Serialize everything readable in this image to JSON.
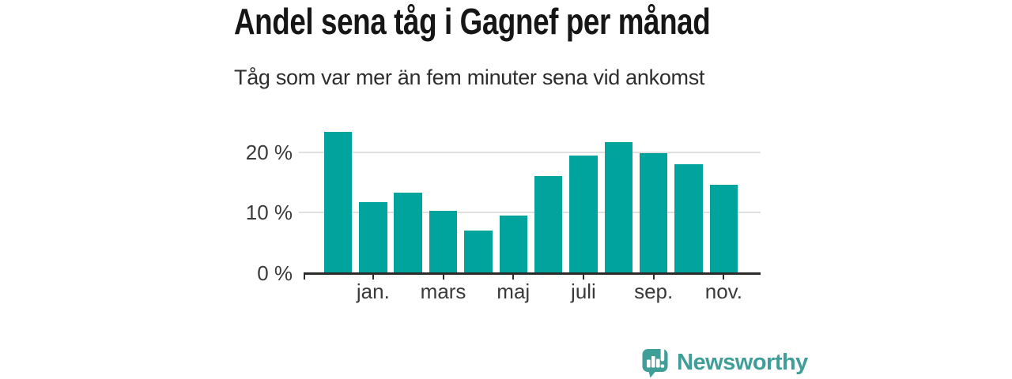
{
  "title": "Andel sena tåg i Gagnef per månad",
  "subtitle": "Tåg som var mer än fem minuter sena vid ankomst",
  "footer": {
    "brand": "Newsworthy",
    "logo_icon": "newsworthy-speech-bubble-bar-chart-icon"
  },
  "colors": {
    "bar": "#00a49c",
    "brand": "#3f9e98",
    "grid": "#e0e0e0",
    "axis": "#2b2b2b",
    "title_text": "#161616",
    "label_text": "#3a3a3a"
  },
  "chart_data": {
    "type": "bar",
    "values": [
      23.3,
      11.8,
      13.3,
      10.3,
      7.0,
      9.5,
      16.1,
      19.4,
      21.7,
      19.8,
      18.0,
      14.6
    ],
    "x_tick_labels": [
      "jan.",
      "mars",
      "maj",
      "juli",
      "sep.",
      "nov."
    ],
    "x_tick_bar_indices": [
      1,
      3,
      5,
      7,
      9,
      11
    ],
    "y_tick_labels": [
      "0 %",
      "10 %",
      "20 %"
    ],
    "y_tick_values": [
      0,
      10,
      20
    ],
    "ylim": [
      0,
      24.3
    ],
    "grid": "horizontal-only",
    "legend": "none",
    "title": "Andel sena tåg i Gagnef per månad",
    "subtitle": "Tåg som var mer än fem minuter sena vid ankomst"
  }
}
